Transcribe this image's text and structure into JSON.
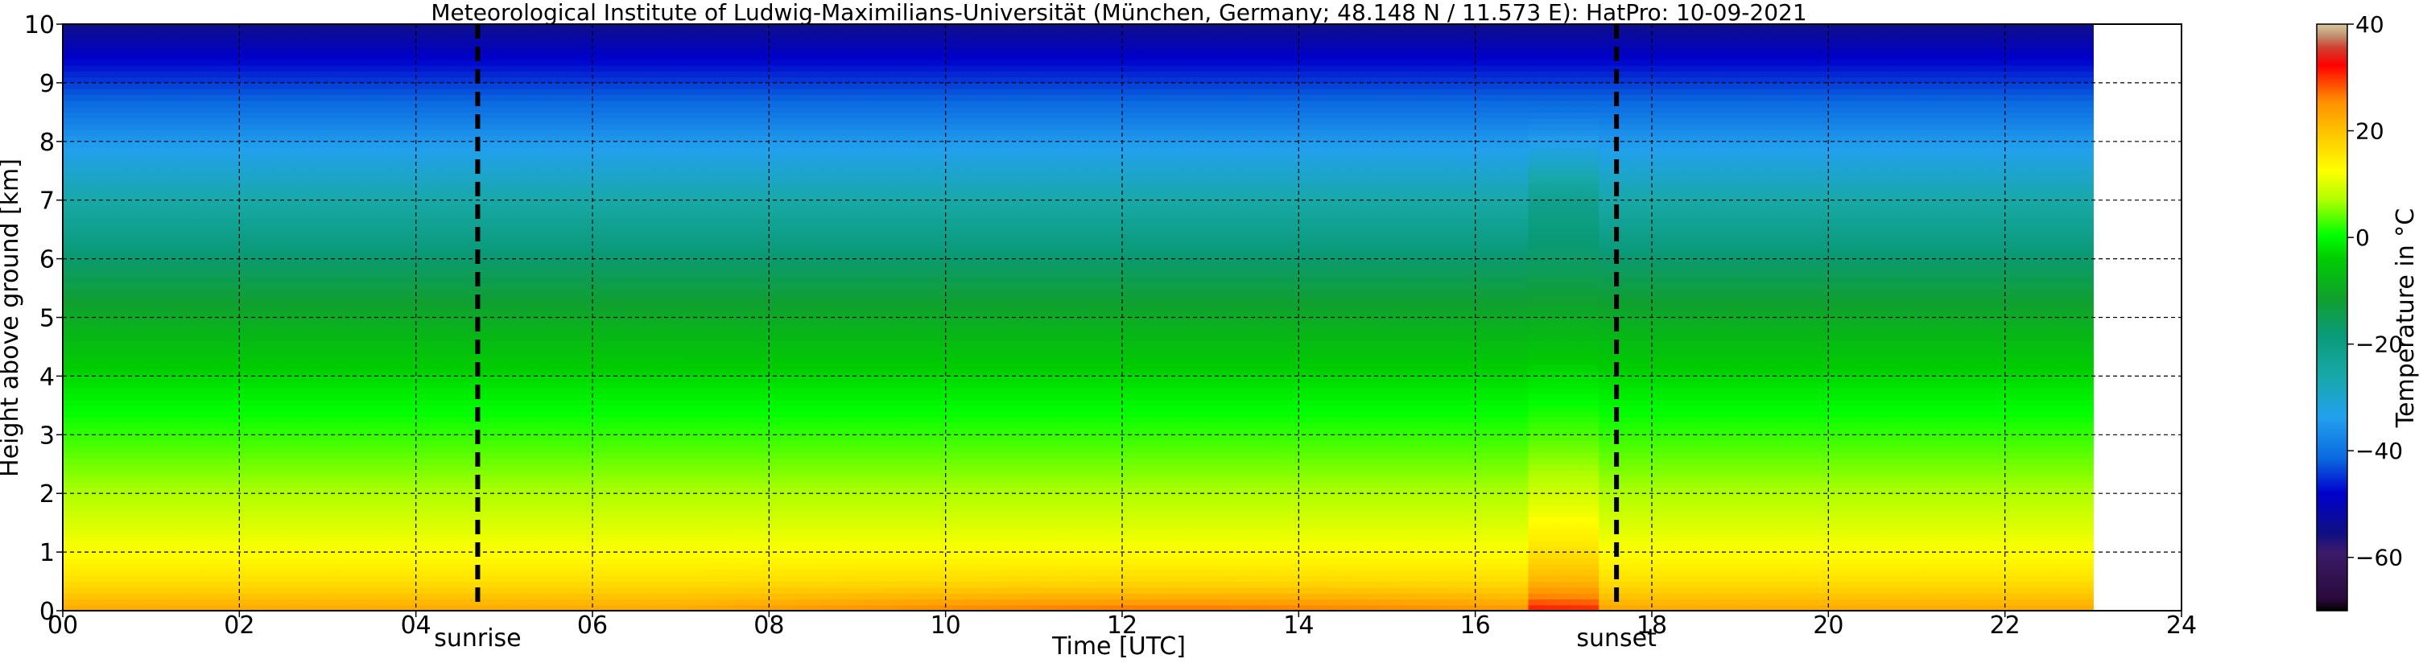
{
  "chart_data": {
    "type": "heatmap",
    "title": "Meteorological Institute of Ludwig-Maximilians-Universität (München, Germany; 48.148 N / 11.573 E):     HatPro: 10-09-2021",
    "xlabel": "Time [UTC]",
    "ylabel": "Height above ground [km]",
    "xlim": [
      0,
      24
    ],
    "ylim": [
      0,
      10
    ],
    "x_ticks": [
      "00",
      "02",
      "04",
      "06",
      "08",
      "10",
      "12",
      "14",
      "16",
      "18",
      "20",
      "22",
      "24"
    ],
    "y_ticks": [
      "0",
      "1",
      "2",
      "3",
      "4",
      "5",
      "6",
      "7",
      "8",
      "9",
      "10"
    ],
    "grid": true,
    "data_time_range_utc": [
      0,
      23
    ],
    "annotations": [
      {
        "label": "sunrise",
        "time_utc": 4.7
      },
      {
        "label": "sunset",
        "time_utc": 17.6
      }
    ],
    "colorbar": {
      "label": "Temperature in $^\\circ$C",
      "range": [
        -70,
        40
      ],
      "ticks": [
        "40",
        "20",
        "0",
        "−20",
        "−40",
        "−60"
      ]
    },
    "temperature_profile_c": [
      {
        "height_km": 0,
        "temperature": 23
      },
      {
        "height_km": 0.5,
        "temperature": 16
      },
      {
        "height_km": 1,
        "temperature": 12
      },
      {
        "height_km": 2,
        "temperature": 7
      },
      {
        "height_km": 3,
        "temperature": 2
      },
      {
        "height_km": 4,
        "temperature": -3
      },
      {
        "height_km": 5,
        "temperature": -10
      },
      {
        "height_km": 6,
        "temperature": -18
      },
      {
        "height_km": 7,
        "temperature": -27
      },
      {
        "height_km": 8,
        "temperature": -36
      },
      {
        "height_km": 9,
        "temperature": -45
      },
      {
        "height_km": 10,
        "temperature": -55
      }
    ],
    "warm_anomaly": {
      "time_range_utc": [
        16.6,
        17.4
      ],
      "surface_temperature": 30
    },
    "colors": {
      "grid": "#000000",
      "colormap": [
        "#000000",
        "#2a0a3a",
        "#3b1a6a",
        "#101080",
        "#0000cc",
        "#0a6ae0",
        "#22a0ee",
        "#18a8a8",
        "#0a9a78",
        "#10a030",
        "#00cc00",
        "#00ff00",
        "#b0ff00",
        "#ffff00",
        "#ffc000",
        "#ff8c00",
        "#ff3000",
        "#ff0000",
        "#d04030",
        "#c09070",
        "#d8c8a0"
      ]
    }
  }
}
